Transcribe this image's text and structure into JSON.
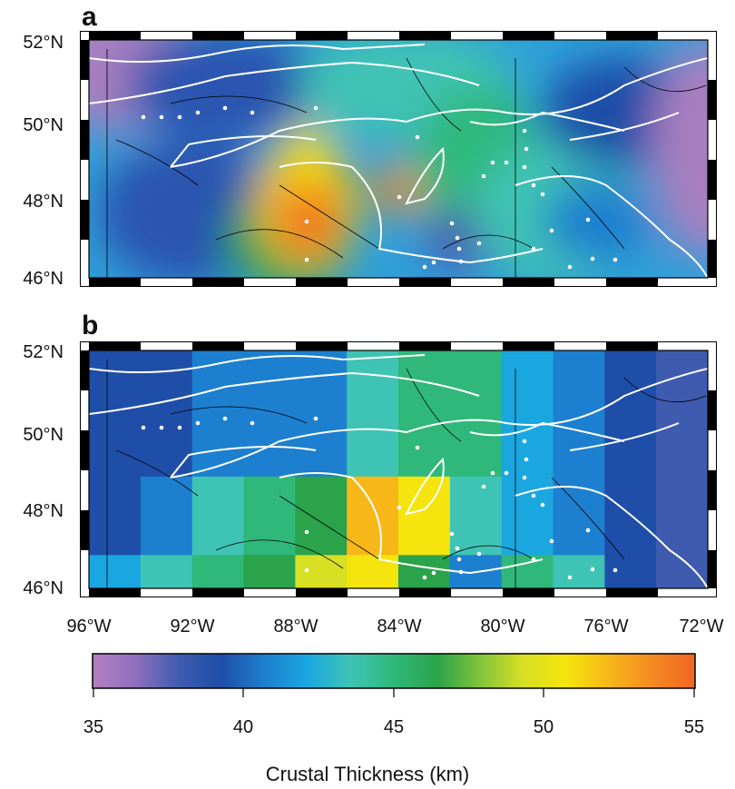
{
  "panels": [
    {
      "label": "a",
      "kind": "smooth"
    },
    {
      "label": "b",
      "kind": "gridded"
    }
  ],
  "lat_labels": [
    "52°N",
    "50°N",
    "48°N",
    "46°N"
  ],
  "lon_labels": [
    "96°W",
    "92°W",
    "88°W",
    "84°W",
    "80°W",
    "76°W",
    "72°W"
  ],
  "colorbar": {
    "min": 35,
    "max": 55,
    "tick_labels": [
      "35",
      "40",
      "45",
      "50",
      "55"
    ],
    "title": "Crustal Thickness (km)",
    "colors": [
      "#b47fc0",
      "#8f6fbe",
      "#3f5bb0",
      "#1f4ea8",
      "#1d7fcf",
      "#1aa7e0",
      "#3fc3b4",
      "#2fb87a",
      "#2aa34a",
      "#7fc43a",
      "#d8e024",
      "#f5e40d",
      "#f7b719",
      "#f48a22",
      "#f06522"
    ]
  },
  "gridded_panel_cells": {
    "columns": 12,
    "rows": 3,
    "values_km": [
      [
        39,
        39,
        40,
        40,
        41,
        44,
        45,
        45,
        42,
        40,
        39,
        38
      ],
      [
        39,
        40,
        43,
        45,
        47,
        52,
        50,
        44,
        42,
        41,
        39,
        38
      ],
      [
        42,
        44,
        45,
        46,
        49,
        50,
        46,
        40,
        45,
        44,
        39,
        38
      ]
    ]
  }
}
